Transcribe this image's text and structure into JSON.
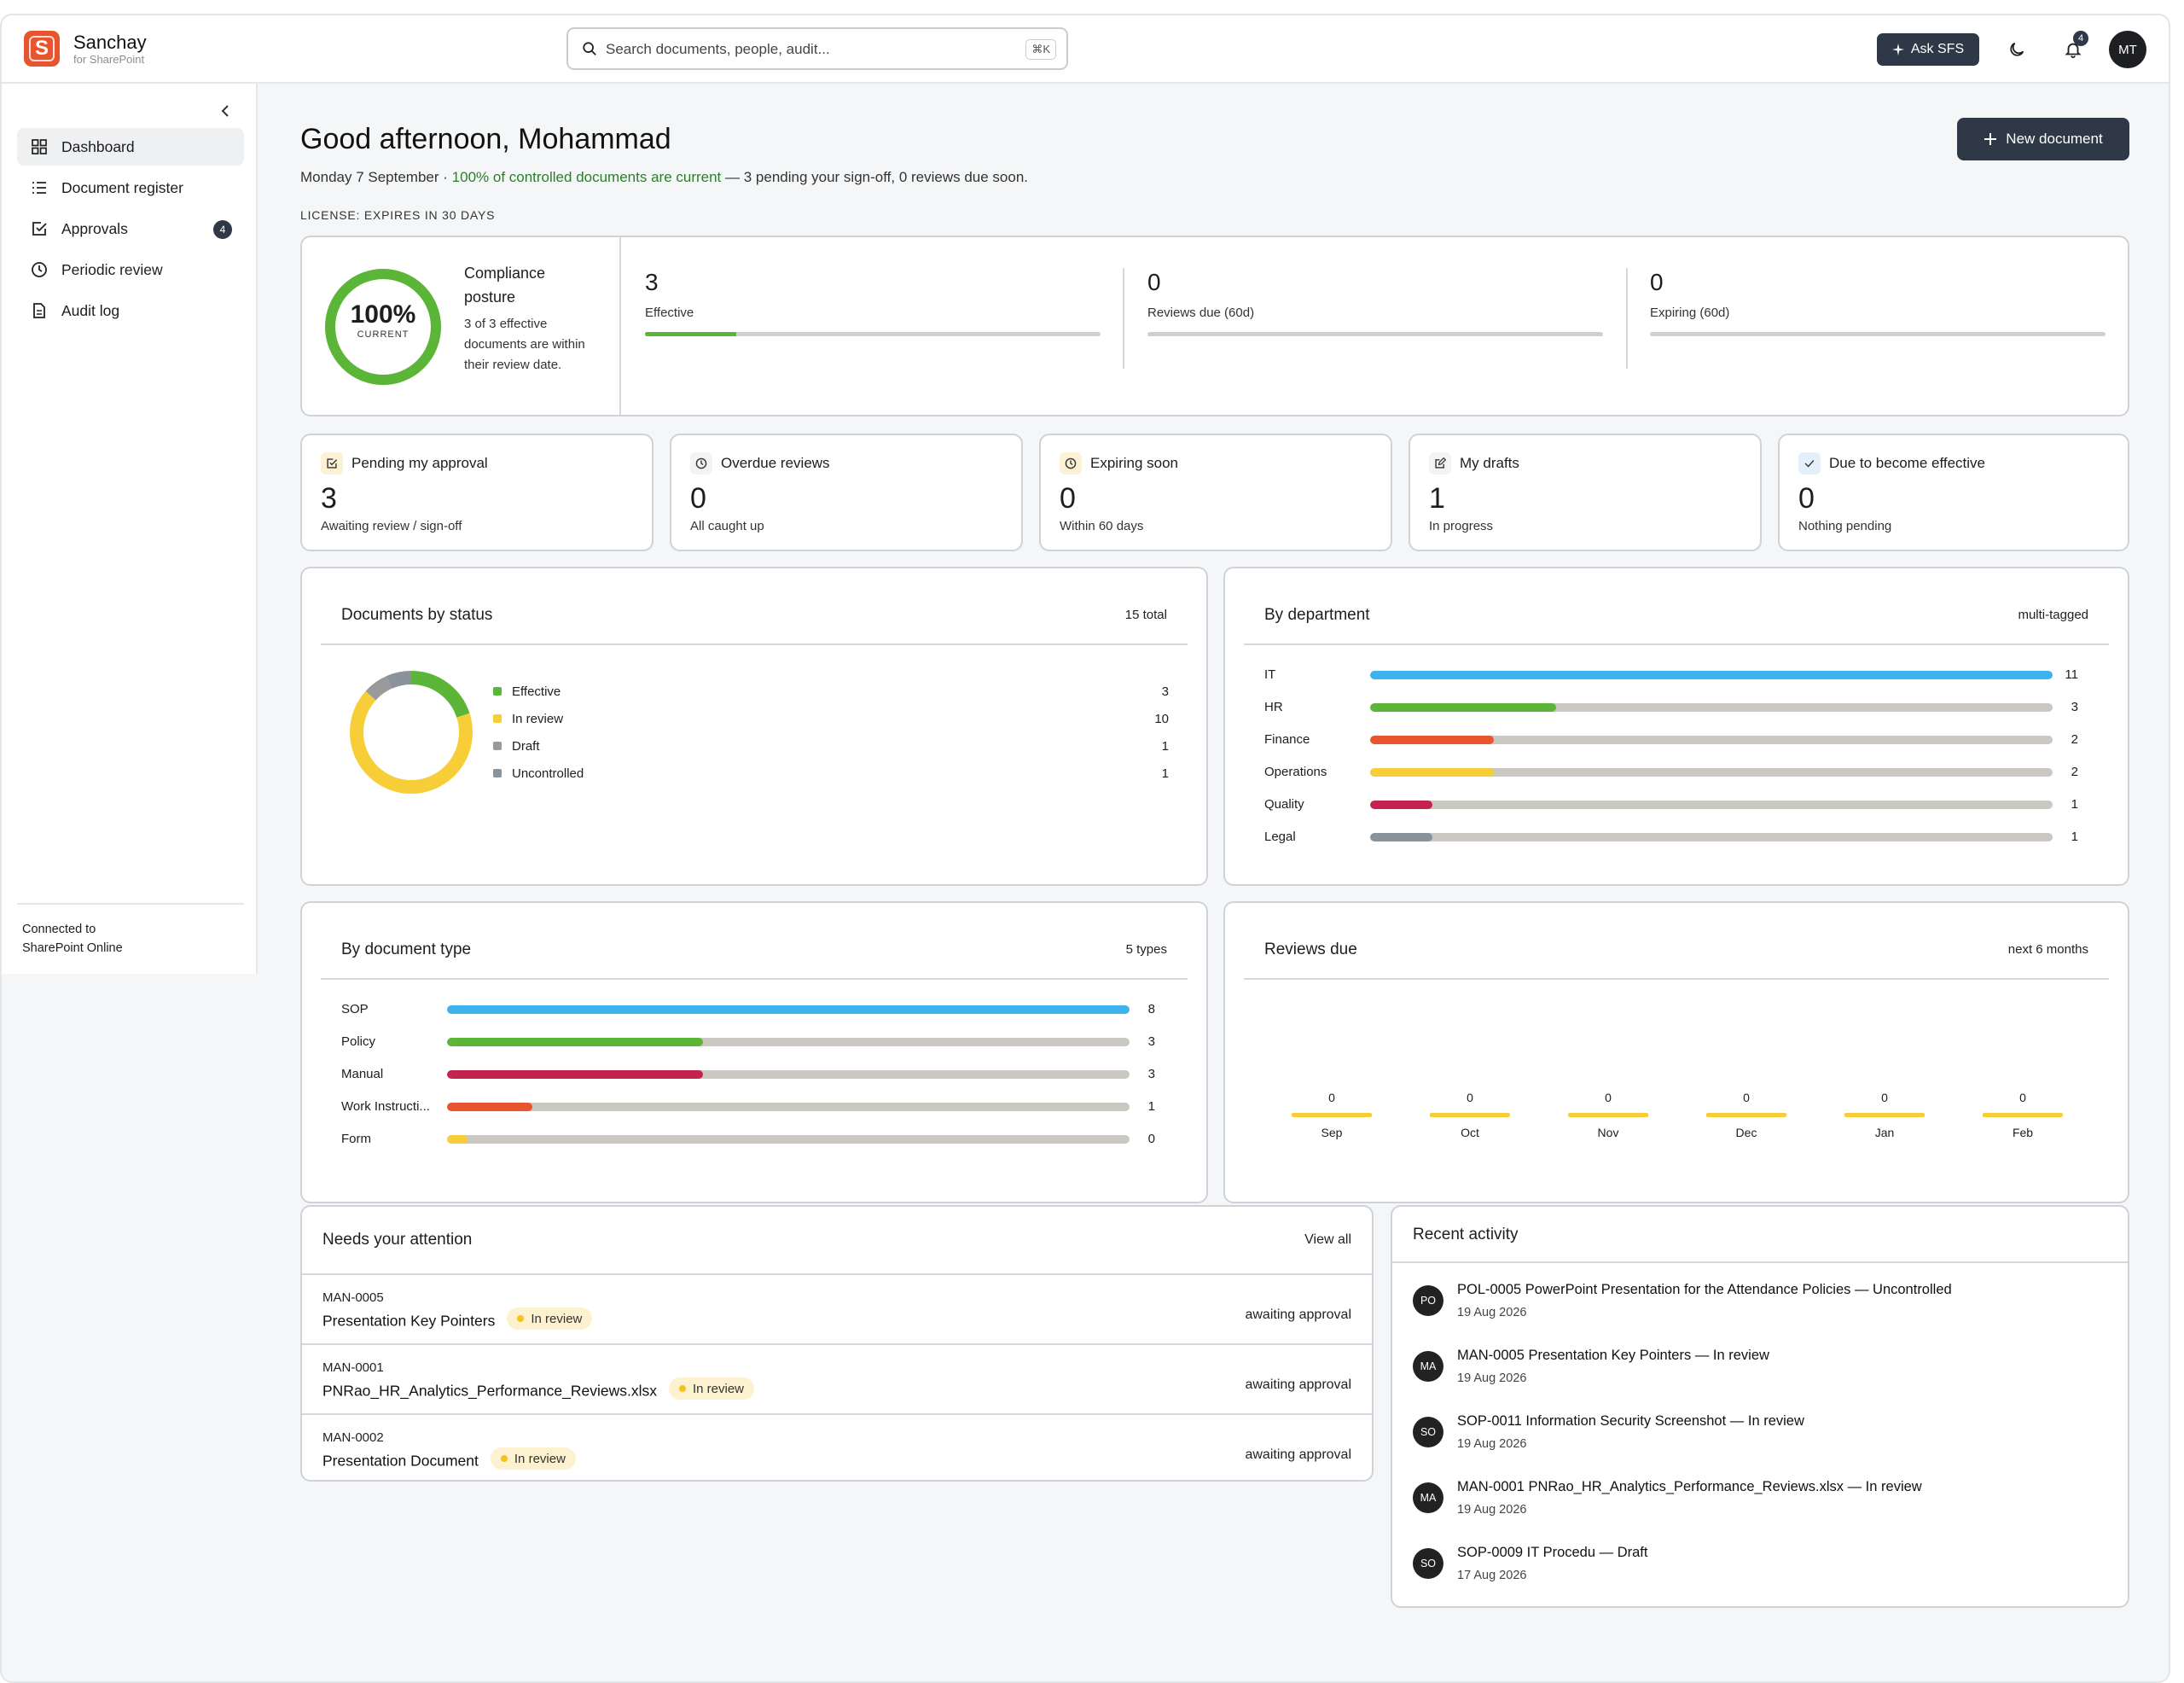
{
  "brand": {
    "name": "Sanchay",
    "sub": "for SharePoint",
    "logo_letter": "S",
    "accent": "#e8542d"
  },
  "search": {
    "placeholder": "Search documents, people, audit...",
    "shortcut": "⌘K"
  },
  "topbar": {
    "ask_label": "Ask SFS",
    "notifications": "4",
    "avatar": "MT"
  },
  "sidebar": {
    "items": [
      {
        "label": "Dashboard",
        "icon": "grid-icon",
        "active": true
      },
      {
        "label": "Document register",
        "icon": "list-icon"
      },
      {
        "label": "Approvals",
        "icon": "check-square-icon",
        "badge": "4"
      },
      {
        "label": "Periodic review",
        "icon": "clock-icon"
      },
      {
        "label": "Audit log",
        "icon": "document-icon"
      }
    ],
    "connected_line1": "Connected to",
    "connected_line2": "SharePoint Online"
  },
  "header": {
    "greeting": "Good afternoon, Mohammad",
    "date": "Monday 7 September · ",
    "current_text": "100% of controlled documents are current",
    "rest": " — 3 pending your sign-off, 0 reviews due soon.",
    "license": "LICENSE: EXPIRES IN 30 DAYS",
    "new_doc": "New document"
  },
  "compliance": {
    "percent": "100%",
    "percent_value": 100,
    "current_label": "CURRENT",
    "title": "Compliance posture",
    "desc": "3 of 3 effective documents are within their review date.",
    "kpis": [
      {
        "value": "3",
        "label": "Effective",
        "fill": 0.2
      },
      {
        "value": "0",
        "label": "Reviews due (60d)",
        "fill": 0
      },
      {
        "value": "0",
        "label": "Expiring (60d)",
        "fill": 0
      }
    ]
  },
  "stats": [
    {
      "label": "Pending my approval",
      "value": "3",
      "sub": "Awaiting review / sign-off",
      "icon": "check-square-icon",
      "tint": "#fdf1d6"
    },
    {
      "label": "Overdue reviews",
      "value": "0",
      "sub": "All caught up",
      "icon": "clock-icon",
      "tint": "#f3f3f3"
    },
    {
      "label": "Expiring soon",
      "value": "0",
      "sub": "Within 60 days",
      "icon": "clock-icon",
      "tint": "#fdf1d6"
    },
    {
      "label": "My drafts",
      "value": "1",
      "sub": "In progress",
      "icon": "edit-icon",
      "tint": "#f3f3f3"
    },
    {
      "label": "Due to become effective",
      "value": "0",
      "sub": "Nothing pending",
      "icon": "check-icon",
      "tint": "#e3f0fb"
    }
  ],
  "status_panel": {
    "title": "Documents by status",
    "meta": "15 total",
    "chart_data": {
      "type": "pie",
      "categories": [
        "Effective",
        "In review",
        "Draft",
        "Uncontrolled"
      ],
      "values": [
        3,
        10,
        1,
        1
      ],
      "colors": [
        "#5bb536",
        "#f7cd38",
        "#9a9a9a",
        "#8a929c"
      ]
    }
  },
  "dept_panel": {
    "title": "By department",
    "meta": "multi-tagged",
    "chart_data": {
      "type": "bar",
      "categories": [
        "IT",
        "HR",
        "Finance",
        "Operations",
        "Quality",
        "Legal"
      ],
      "values": [
        11,
        3,
        2,
        2,
        1,
        1
      ],
      "xlim": [
        0,
        11
      ],
      "colors": [
        "#3db3ee",
        "#5bb536",
        "#e8542d",
        "#f7cd38",
        "#c4234f",
        "#8a929c"
      ]
    }
  },
  "type_panel": {
    "title": "By document type",
    "meta": "5 types",
    "chart_data": {
      "type": "bar",
      "categories": [
        "SOP",
        "Policy",
        "Manual",
        "Work Instructi...",
        "Form"
      ],
      "values": [
        8,
        3,
        3,
        1,
        0
      ],
      "xlim": [
        0,
        8
      ],
      "colors": [
        "#3db3ee",
        "#5bb536",
        "#c4234f",
        "#e8542d",
        "#f7cd38"
      ]
    }
  },
  "reviews_panel": {
    "title": "Reviews due",
    "meta": "next 6 months",
    "chart_data": {
      "type": "bar",
      "categories": [
        "Sep",
        "Oct",
        "Nov",
        "Dec",
        "Jan",
        "Feb"
      ],
      "values": [
        0,
        0,
        0,
        0,
        0,
        0
      ]
    }
  },
  "attention": {
    "title": "Needs your attention",
    "view_all": "View all",
    "rows": [
      {
        "code": "MAN-0005",
        "name": "Presentation Key Pointers",
        "status": "In review",
        "action": "awaiting approval"
      },
      {
        "code": "MAN-0001",
        "name": "PNRao_HR_Analytics_Performance_Reviews.xlsx",
        "status": "In review",
        "action": "awaiting approval"
      },
      {
        "code": "MAN-0002",
        "name": "Presentation Document",
        "status": "In review",
        "action": "awaiting approval"
      }
    ]
  },
  "activity": {
    "title": "Recent activity",
    "rows": [
      {
        "initials": "PO",
        "code": "POL-0005",
        "text": " PowerPoint Presentation for the Attendance Policies — Uncontrolled",
        "date": "19 Aug 2026"
      },
      {
        "initials": "MA",
        "code": "MAN-0005",
        "text": " Presentation Key Pointers — In review",
        "date": "19 Aug 2026"
      },
      {
        "initials": "SO",
        "code": "SOP-0011",
        "text": " Information Security Screenshot — In review",
        "date": "19 Aug 2026"
      },
      {
        "initials": "MA",
        "code": "MAN-0001",
        "text": " PNRao_HR_Analytics_Performance_Reviews.xlsx — In review",
        "date": "19 Aug 2026"
      },
      {
        "initials": "SO",
        "code": "SOP-0009",
        "text": " IT Procedu — Draft",
        "date": "17 Aug 2026"
      }
    ]
  }
}
